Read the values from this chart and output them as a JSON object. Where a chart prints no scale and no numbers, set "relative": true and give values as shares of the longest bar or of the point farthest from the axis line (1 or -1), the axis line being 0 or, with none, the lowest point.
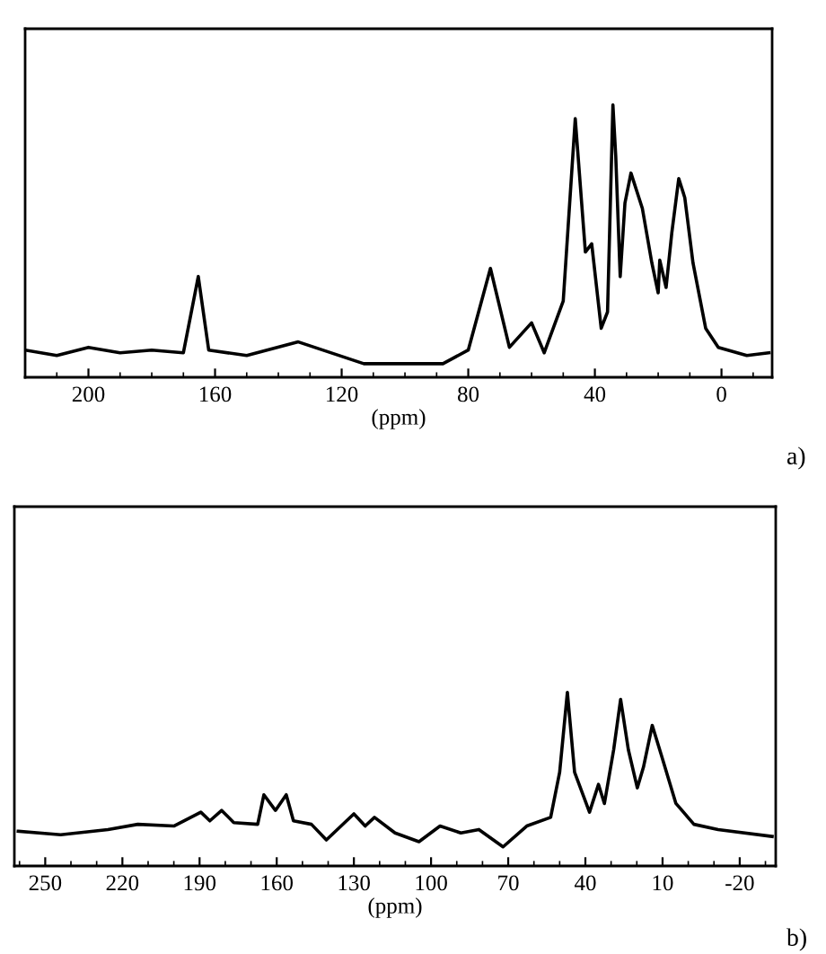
{
  "chart_data": [
    {
      "type": "line",
      "relative": true,
      "xlabel": "(ppm)",
      "annotations": [
        "a)"
      ],
      "xlim": [
        220,
        -16
      ],
      "xticks": [
        200,
        160,
        120,
        80,
        40,
        0
      ],
      "tick_labels": "x",
      "grid": false,
      "legend": false,
      "x": [
        220,
        210,
        200,
        190,
        180,
        170,
        165.3,
        162,
        150,
        133.7,
        113,
        88,
        80,
        73,
        67,
        60,
        56,
        50,
        46.2,
        43,
        41,
        38,
        36,
        34.3,
        33.4,
        32,
        30.5,
        28.6,
        25,
        22,
        20,
        19.5,
        17.5,
        15.7,
        13.5,
        11.6,
        9,
        5,
        1,
        -8,
        -15
      ],
      "series": [
        {
          "color": "#000000",
          "values": [
            0.1,
            0.08,
            0.11,
            0.09,
            0.1,
            0.09,
            0.37,
            0.1,
            0.08,
            0.13,
            0.05,
            0.05,
            0.1,
            0.4,
            0.11,
            0.2,
            0.09,
            0.28,
            0.95,
            0.46,
            0.49,
            0.18,
            0.24,
            1.0,
            0.81,
            0.37,
            0.64,
            0.75,
            0.62,
            0.42,
            0.31,
            0.43,
            0.33,
            0.53,
            0.73,
            0.66,
            0.42,
            0.18,
            0.11,
            0.08,
            0.09
          ]
        }
      ]
    },
    {
      "type": "line",
      "relative": true,
      "xlabel": "(ppm)",
      "annotations": [
        "b)"
      ],
      "xlim": [
        262,
        -34
      ],
      "xticks": [
        250,
        220,
        190,
        160,
        130,
        100,
        70,
        40,
        10,
        -20
      ],
      "tick_labels": "x",
      "grid": false,
      "legend": false,
      "x": [
        260.5,
        244,
        225.6,
        214,
        200,
        189.5,
        186,
        181.4,
        176.7,
        167.4,
        165,
        160.5,
        156.3,
        153.5,
        146.5,
        140.7,
        130,
        125.6,
        122,
        114,
        104.7,
        96.5,
        88.4,
        81.4,
        72,
        62.8,
        53.5,
        50,
        47,
        44.2,
        38.4,
        34.9,
        32.6,
        29,
        26.3,
        23.3,
        19.8,
        17.4,
        14,
        10.5,
        4.8,
        -2.2,
        -11.6,
        -32.6
      ],
      "series": [
        {
          "color": "#000000",
          "values": [
            0.2,
            0.18,
            0.21,
            0.24,
            0.23,
            0.31,
            0.26,
            0.32,
            0.25,
            0.24,
            0.41,
            0.32,
            0.41,
            0.26,
            0.24,
            0.15,
            0.3,
            0.23,
            0.28,
            0.19,
            0.14,
            0.23,
            0.19,
            0.21,
            0.11,
            0.23,
            0.28,
            0.54,
            1.0,
            0.54,
            0.31,
            0.47,
            0.36,
            0.67,
            0.96,
            0.67,
            0.45,
            0.57,
            0.81,
            0.64,
            0.36,
            0.24,
            0.21,
            0.17
          ]
        }
      ]
    }
  ]
}
